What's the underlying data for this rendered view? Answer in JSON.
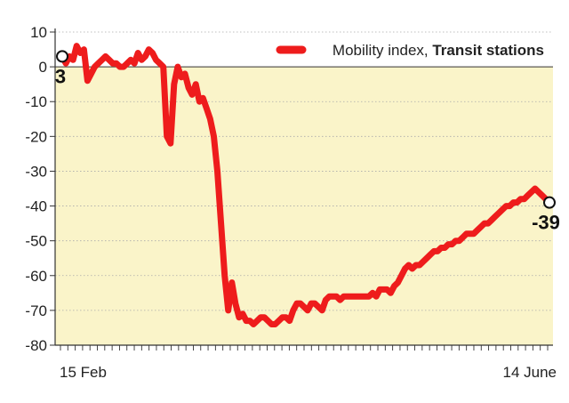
{
  "chart_data": {
    "type": "line",
    "legend": {
      "prefix": "Mobility index, ",
      "bold": "Transit stations",
      "position": "top-right"
    },
    "y_ticks": [
      10,
      0,
      -10,
      -20,
      -30,
      -40,
      -50,
      -60,
      -70,
      -80
    ],
    "ylim": [
      -80,
      10
    ],
    "x_start_label": "15 Feb",
    "x_end_label": "14 June",
    "start_value_label": "3",
    "end_value_label": "-39",
    "colors": {
      "line": "#ee1c1c",
      "plot_background": "#faf4c9",
      "grid": "#aaaaaa",
      "axis": "#333333"
    },
    "series": [
      {
        "values": [
          3,
          1,
          3,
          2,
          6,
          4,
          5,
          -4,
          -2,
          0,
          1,
          2,
          3,
          2,
          1,
          1,
          0,
          0,
          1,
          2,
          1,
          4,
          2,
          3,
          5,
          4,
          2,
          1,
          0,
          -20,
          -22,
          -5,
          0,
          -3,
          -2,
          -6,
          -8,
          -5,
          -10,
          -9,
          -12,
          -15,
          -20,
          -30,
          -45,
          -60,
          -70,
          -62,
          -68,
          -72,
          -71,
          -73,
          -73,
          -74,
          -73,
          -72,
          -72,
          -73,
          -74,
          -74,
          -73,
          -72,
          -72,
          -73,
          -70,
          -68,
          -68,
          -69,
          -70,
          -68,
          -68,
          -69,
          -70,
          -67,
          -66,
          -66,
          -66,
          -67,
          -66,
          -66,
          -66,
          -66,
          -66,
          -66,
          -66,
          -66,
          -65,
          -66,
          -64,
          -64,
          -64,
          -65,
          -63,
          -62,
          -60,
          -58,
          -57,
          -58,
          -57,
          -57,
          -56,
          -55,
          -54,
          -53,
          -53,
          -52,
          -52,
          -51,
          -51,
          -50,
          -50,
          -49,
          -48,
          -48,
          -48,
          -47,
          -46,
          -45,
          -45,
          -44,
          -43,
          -42,
          -41,
          -40,
          -40,
          -39,
          -39,
          -38,
          -38,
          -37,
          -36,
          -35,
          -36,
          -37,
          -38,
          -39
        ]
      }
    ]
  }
}
